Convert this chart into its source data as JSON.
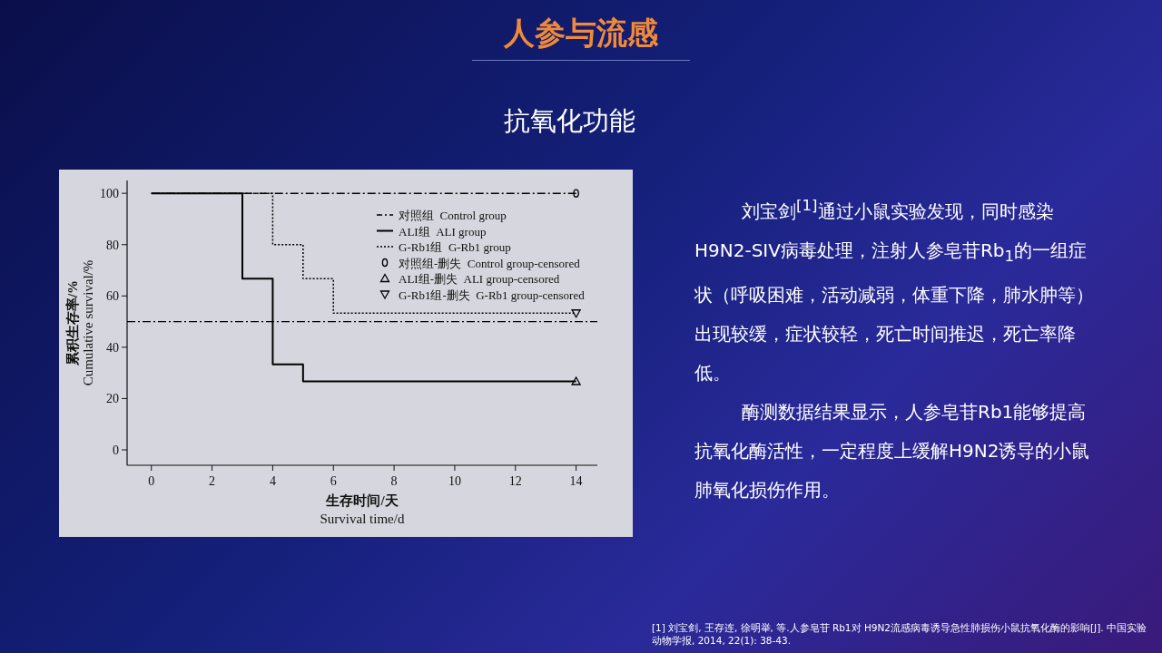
{
  "chart_data": {
    "type": "step",
    "title": "人参与流感",
    "subtitle": "抗氧化功能",
    "xlabel": "生存时间/天\nSurvival time/d",
    "ylabel": "累积生存率/%\nCumulative survival/%",
    "xlim": [
      -0.8,
      14.7
    ],
    "ylim": [
      -6,
      105
    ],
    "xticks": [
      0,
      2,
      4,
      6,
      8,
      10,
      12,
      14
    ],
    "yticks": [
      0,
      20,
      40,
      60,
      80,
      100
    ],
    "legend": "top right",
    "series": [
      {
        "name": "对照组  Control group",
        "color": "#000000",
        "line_style": "dashdot",
        "marker": "none",
        "x": [
          0,
          14
        ],
        "values": [
          100,
          100
        ]
      },
      {
        "name": "ALI组  ALI group",
        "color": "#000000",
        "line_style": "solid",
        "marker": "none",
        "x": [
          0,
          3,
          4,
          5,
          14
        ],
        "values": [
          100,
          66.7,
          33.3,
          26.7,
          26.7
        ]
      },
      {
        "name": "G-Rb1组  G-Rb1 group",
        "color": "#000000",
        "line_style": "dotted",
        "marker": "none",
        "x": [
          0,
          4,
          5,
          6,
          14
        ],
        "values": [
          100,
          80,
          66.7,
          53.3,
          53.3
        ]
      },
      {
        "name": "对照组-删失  Control group-censored",
        "type": "scatter",
        "color": "#000000",
        "marker": "circle",
        "x": [
          14
        ],
        "values": [
          100
        ]
      },
      {
        "name": "ALI组-删失  ALI group-censored",
        "type": "scatter",
        "color": "#000000",
        "marker": "triangle",
        "x": [
          14
        ],
        "values": [
          26.7
        ]
      },
      {
        "name": "G-Rb1组-删失  G-Rb1 group-censored",
        "type": "scatter",
        "color": "#000000",
        "marker": "triangle-down",
        "x": [
          14
        ],
        "values": [
          53.3
        ]
      }
    ],
    "ref_lines": [
      {
        "axis": "y",
        "value": 50,
        "line_style": "dashdot",
        "color": "#000000"
      }
    ],
    "annotations": [
      "刘宝剑$^{[1]}$通过小鼠实验发现，同时感染H9N2-SIV病毒处理，注射人参皂苷Rb$_{1}$的一组症状（呼吸困难，活动减弱，体重下降，肺水肿等）出现较缓，症状较轻，死亡时间推迟，死亡率降低。",
      "酶测数据结果显示，人参皂苷Rb1能够提高抗氧化酶活性，一定程度上缓解H9N2诱导的小鼠肺氧化损伤作用。",
      "[1] 刘宝剑, 王存连, 徐明举, 等.人参皂苷 Rb1对 H9N2流感病毒诱导急性肺损伤小鼠抗氧化酶的影响[J]. 中国实验动物学报, 2014, 22(1): 38-43."
    ]
  }
}
